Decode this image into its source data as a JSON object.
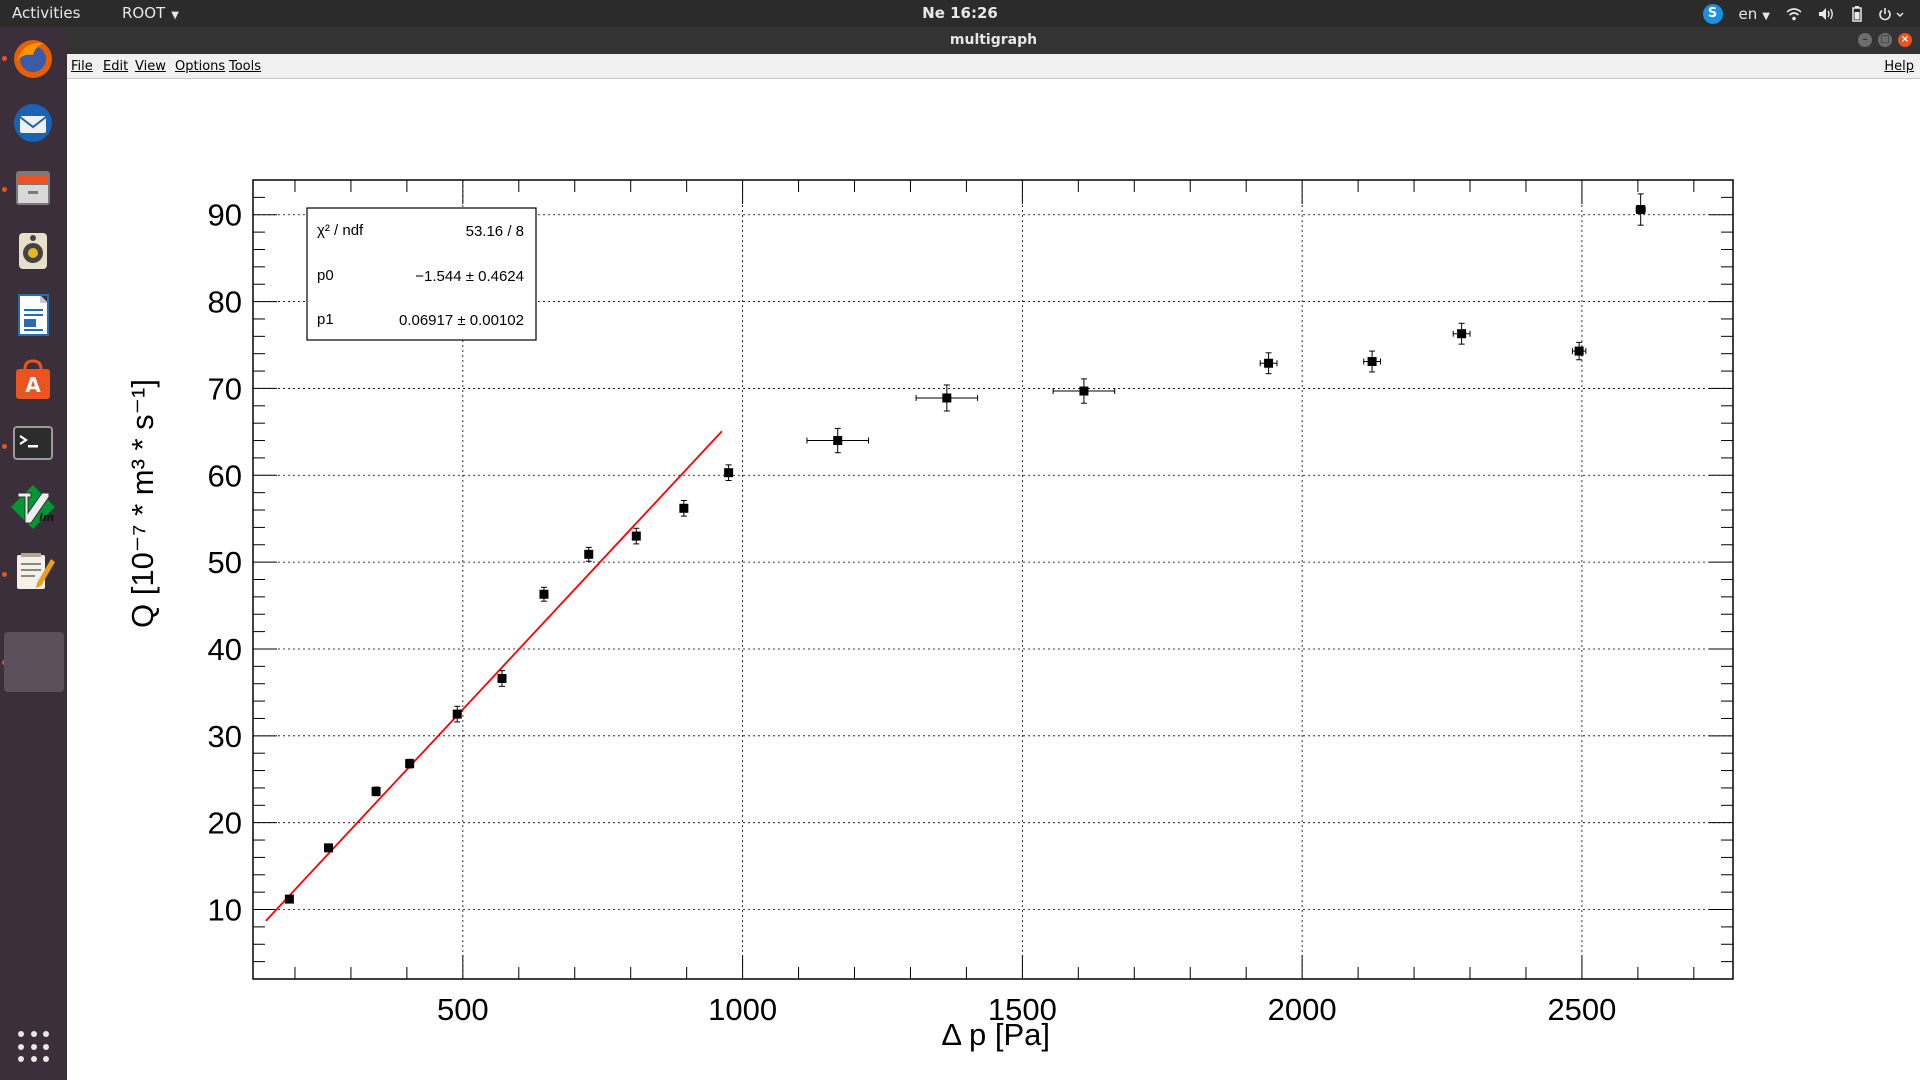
{
  "topbar": {
    "activities": "Activities",
    "app_menu": "ROOT",
    "clock": "Ne 16:26",
    "lang": "en",
    "icons": [
      "skype-icon",
      "wifi-icon",
      "volume-icon",
      "battery-icon",
      "power-icon"
    ]
  },
  "dock": {
    "apps": [
      "firefox-icon",
      "thunderbird-icon",
      "files-icon",
      "rhythmbox-icon",
      "writer-icon",
      "software-center-icon",
      "terminal-icon",
      "vim-icon",
      "text-editor-icon",
      "root-app-icon"
    ],
    "show_apps": "app-grid-icon"
  },
  "window": {
    "title": "multigraph",
    "menu": {
      "file": "File",
      "edit": "Edit",
      "view": "View",
      "options": "Options",
      "tools": "Tools",
      "help": "Help"
    }
  },
  "stats": {
    "chi2_label": "χ² / ndf",
    "chi2_value": "53.16 / 8",
    "p0_label": "p0",
    "p0_value": "−1.544 ± 0.4624",
    "p1_label": "p1",
    "p1_value": "0.06917 ± 0.00102"
  },
  "chart_data": {
    "type": "scatter",
    "xlabel": "Δ p [Pa]",
    "ylabel": "Q [10⁻⁷ * m³ * s⁻¹]",
    "xlim": [
      125,
      2770
    ],
    "ylim": [
      2,
      94
    ],
    "xticks": [
      500,
      1000,
      1500,
      2000,
      2500
    ],
    "yticks": [
      10,
      20,
      30,
      40,
      50,
      60,
      70,
      80,
      90
    ],
    "grid": true,
    "points": [
      {
        "x": 190,
        "y": 11.2,
        "xerr": 0,
        "yerr": 0.3
      },
      {
        "x": 260,
        "y": 17.1,
        "xerr": 0,
        "yerr": 0.4
      },
      {
        "x": 345,
        "y": 23.6,
        "xerr": 0,
        "yerr": 0.5
      },
      {
        "x": 405,
        "y": 26.8,
        "xerr": 0,
        "yerr": 0.5
      },
      {
        "x": 490,
        "y": 32.5,
        "xerr": 6,
        "yerr": 0.9
      },
      {
        "x": 570,
        "y": 36.6,
        "xerr": 0,
        "yerr": 0.9
      },
      {
        "x": 645,
        "y": 46.3,
        "xerr": 0,
        "yerr": 0.8
      },
      {
        "x": 725,
        "y": 50.9,
        "xerr": 0,
        "yerr": 0.8
      },
      {
        "x": 810,
        "y": 53.0,
        "xerr": 0,
        "yerr": 0.9
      },
      {
        "x": 895,
        "y": 56.2,
        "xerr": 0,
        "yerr": 0.9
      },
      {
        "x": 975,
        "y": 60.3,
        "xerr": 0,
        "yerr": 0.9
      },
      {
        "x": 1170,
        "y": 64.0,
        "xerr": 55,
        "yerr": 1.4
      },
      {
        "x": 1365,
        "y": 68.9,
        "xerr": 55,
        "yerr": 1.5
      },
      {
        "x": 1610,
        "y": 69.7,
        "xerr": 55,
        "yerr": 1.4
      },
      {
        "x": 1940,
        "y": 72.9,
        "xerr": 15,
        "yerr": 1.2
      },
      {
        "x": 2125,
        "y": 73.1,
        "xerr": 15,
        "yerr": 1.2
      },
      {
        "x": 2285,
        "y": 76.3,
        "xerr": 15,
        "yerr": 1.2
      },
      {
        "x": 2495,
        "y": 74.3,
        "xerr": 12,
        "yerr": 1.0
      },
      {
        "x": 2605,
        "y": 90.6,
        "xerr": 8,
        "yerr": 1.8
      }
    ],
    "fit": {
      "p0": -1.544,
      "p1": 0.06917,
      "x_range": [
        148,
        963
      ],
      "color": "#ff0000"
    }
  }
}
